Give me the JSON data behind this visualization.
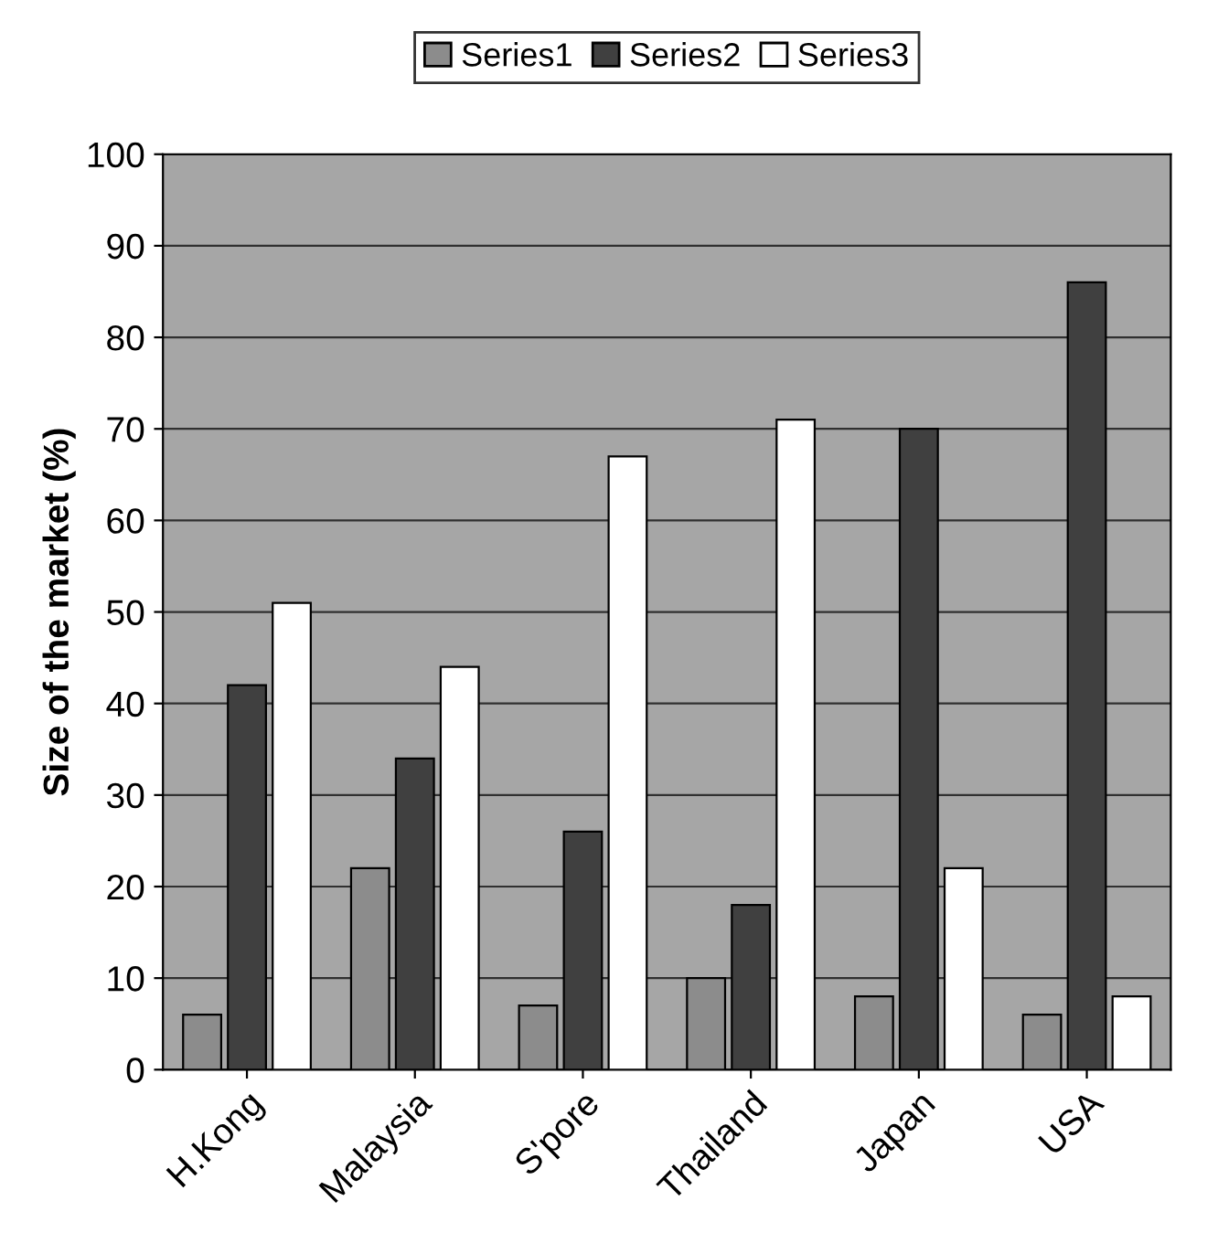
{
  "chart_data": {
    "type": "bar",
    "ylabel": "Size of the market (%)",
    "categories": [
      "H.Kong",
      "Malaysia",
      "S'pore",
      "Thailand",
      "Japan",
      "USA"
    ],
    "series": [
      {
        "name": "Series1",
        "color": "#8c8c8c",
        "values": [
          6,
          22,
          7,
          10,
          8,
          6
        ]
      },
      {
        "name": "Series2",
        "color": "#404040",
        "values": [
          42,
          34,
          26,
          18,
          70,
          86
        ]
      },
      {
        "name": "Series3",
        "color": "#ffffff",
        "values": [
          51,
          44,
          67,
          71,
          22,
          8
        ]
      }
    ],
    "ylim": [
      0,
      100
    ],
    "yticks": [
      0,
      10,
      20,
      30,
      40,
      50,
      60,
      70,
      80,
      90,
      100
    ],
    "grid": "y",
    "legend": "top"
  }
}
